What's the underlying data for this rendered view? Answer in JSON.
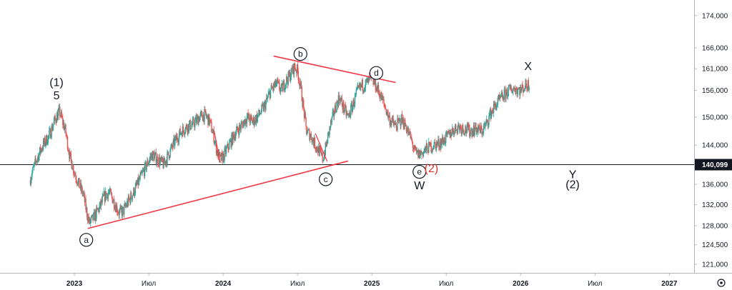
{
  "chart_data": {
    "type": "line",
    "title": "",
    "xlabel": "",
    "ylabel": "",
    "y_scale": "log",
    "ylim": [
      119500,
      178000
    ],
    "y_ticks": [
      "174,000",
      "166,000",
      "161,000",
      "156,000",
      "150,000",
      "144,000",
      "140,099",
      "136,000",
      "132,000",
      "128,000",
      "124,500",
      "121,000"
    ],
    "x_ticks": [
      {
        "label": "2023",
        "bold": true
      },
      {
        "label": "Июл",
        "bold": false
      },
      {
        "label": "2024",
        "bold": true
      },
      {
        "label": "Июл",
        "bold": false
      },
      {
        "label": "2025",
        "bold": true
      },
      {
        "label": "Июл",
        "bold": false
      },
      {
        "label": "2026",
        "bold": true
      },
      {
        "label": "Июл",
        "bold": false
      },
      {
        "label": "2027",
        "bold": true
      }
    ],
    "x_range": [
      "2022-07",
      "2027-03"
    ],
    "current_price": {
      "label": "140,099",
      "value": 140099
    },
    "colors": {
      "up": "#26a69a",
      "down": "#ef5350",
      "trendline": "#f23645",
      "wave_red": "#e03030"
    },
    "series": [
      {
        "values": [
          [
            2022.7,
            136800
          ],
          [
            2022.74,
            140500
          ],
          [
            2022.78,
            143500
          ],
          [
            2022.83,
            146000
          ],
          [
            2022.87,
            149500
          ],
          [
            2022.9,
            151200
          ],
          [
            2022.94,
            147000
          ],
          [
            2022.97,
            141500
          ],
          [
            2023.0,
            138500
          ],
          [
            2023.03,
            136000
          ],
          [
            2023.06,
            134000
          ],
          [
            2023.08,
            131000
          ],
          [
            2023.1,
            128500
          ],
          [
            2023.13,
            129500
          ],
          [
            2023.17,
            131500
          ],
          [
            2023.2,
            133500
          ],
          [
            2023.23,
            134500
          ],
          [
            2023.26,
            133000
          ],
          [
            2023.3,
            130500
          ],
          [
            2023.33,
            130800
          ],
          [
            2023.36,
            132500
          ],
          [
            2023.4,
            134500
          ],
          [
            2023.44,
            137000
          ],
          [
            2023.48,
            139500
          ],
          [
            2023.52,
            142000
          ],
          [
            2023.56,
            141000
          ],
          [
            2023.6,
            140000
          ],
          [
            2023.64,
            142500
          ],
          [
            2023.68,
            145000
          ],
          [
            2023.72,
            147000
          ],
          [
            2023.76,
            148000
          ],
          [
            2023.8,
            148500
          ],
          [
            2023.84,
            150000
          ],
          [
            2023.88,
            150500
          ],
          [
            2023.91,
            149000
          ],
          [
            2023.94,
            145500
          ],
          [
            2023.96,
            142500
          ],
          [
            2023.98,
            141000
          ],
          [
            2024.0,
            141500
          ],
          [
            2024.04,
            144000
          ],
          [
            2024.08,
            146500
          ],
          [
            2024.12,
            148000
          ],
          [
            2024.16,
            150000
          ],
          [
            2024.2,
            149000
          ],
          [
            2024.24,
            150500
          ],
          [
            2024.28,
            152500
          ],
          [
            2024.32,
            156000
          ],
          [
            2024.36,
            157500
          ],
          [
            2024.39,
            156000
          ],
          [
            2024.42,
            158000
          ],
          [
            2024.45,
            159500
          ],
          [
            2024.48,
            161500
          ],
          [
            2024.5,
            160500
          ],
          [
            2024.52,
            157000
          ],
          [
            2024.54,
            152000
          ],
          [
            2024.56,
            147000
          ],
          [
            2024.59,
            146000
          ],
          [
            2024.62,
            144000
          ],
          [
            2024.65,
            142500
          ],
          [
            2024.67,
            141000
          ],
          [
            2024.69,
            143500
          ],
          [
            2024.72,
            148000
          ],
          [
            2024.75,
            151500
          ],
          [
            2024.78,
            154500
          ],
          [
            2024.81,
            152000
          ],
          [
            2024.84,
            150000
          ],
          [
            2024.87,
            152500
          ],
          [
            2024.9,
            155500
          ],
          [
            2024.93,
            157000
          ],
          [
            2024.96,
            157500
          ],
          [
            2024.99,
            158500
          ],
          [
            2025.02,
            157500
          ],
          [
            2025.05,
            155500
          ],
          [
            2025.08,
            153000
          ],
          [
            2025.12,
            149500
          ],
          [
            2025.16,
            148000
          ],
          [
            2025.2,
            149500
          ],
          [
            2025.23,
            148000
          ],
          [
            2025.26,
            145500
          ],
          [
            2025.29,
            142500
          ],
          [
            2025.31,
            142000
          ],
          [
            2025.34,
            142500
          ],
          [
            2025.38,
            143500
          ],
          [
            2025.42,
            144000
          ],
          [
            2025.46,
            144500
          ],
          [
            2025.5,
            145500
          ],
          [
            2025.54,
            147000
          ],
          [
            2025.58,
            148000
          ],
          [
            2025.62,
            147500
          ],
          [
            2025.66,
            147000
          ],
          [
            2025.7,
            147500
          ],
          [
            2025.74,
            147000
          ],
          [
            2025.77,
            148500
          ],
          [
            2025.8,
            151000
          ],
          [
            2025.84,
            153000
          ],
          [
            2025.88,
            154500
          ],
          [
            2025.92,
            156000
          ],
          [
            2025.96,
            156500
          ],
          [
            2026.0,
            156000
          ],
          [
            2026.03,
            157000
          ],
          [
            2026.06,
            157500
          ]
        ]
      }
    ],
    "trendlines": [
      {
        "from": [
          2023.09,
          127500
        ],
        "to": [
          2024.84,
          140700
        ]
      },
      {
        "from": [
          2024.34,
          164000
        ],
        "to": [
          2025.16,
          157800
        ]
      }
    ],
    "line_markers": [
      {
        "from": [
          2023.94,
          147000
        ],
        "to": [
          2023.98,
          140400
        ]
      },
      {
        "from": [
          2024.62,
          146500
        ],
        "to": [
          2024.7,
          140600
        ]
      }
    ],
    "circled_labels": [
      {
        "text": "a",
        "at": [
          2023.08,
          125400
        ]
      },
      {
        "text": "b",
        "at": [
          2024.52,
          164500
        ]
      },
      {
        "text": "c",
        "at": [
          2024.69,
          137000
        ]
      },
      {
        "text": "d",
        "at": [
          2025.03,
          160000
        ]
      },
      {
        "text": "e",
        "at": [
          2025.32,
          138500
        ]
      }
    ],
    "annotations": [
      {
        "text": "(1)",
        "at": [
          2022.88,
          157000
        ],
        "color": "dark"
      },
      {
        "text": "5",
        "at": [
          2022.88,
          154000
        ],
        "color": "dark"
      },
      {
        "text": "(2)",
        "at": [
          2025.4,
          138400
        ],
        "color": "red"
      },
      {
        "text": "W",
        "at": [
          2025.32,
          135000
        ],
        "color": "dark"
      },
      {
        "text": "X",
        "at": [
          2026.05,
          160700
        ],
        "color": "dark"
      },
      {
        "text": "Y",
        "at": [
          2026.35,
          137200
        ],
        "color": "dark"
      },
      {
        "text": "(2)",
        "at": [
          2026.35,
          135200
        ],
        "color": "dark"
      }
    ]
  }
}
